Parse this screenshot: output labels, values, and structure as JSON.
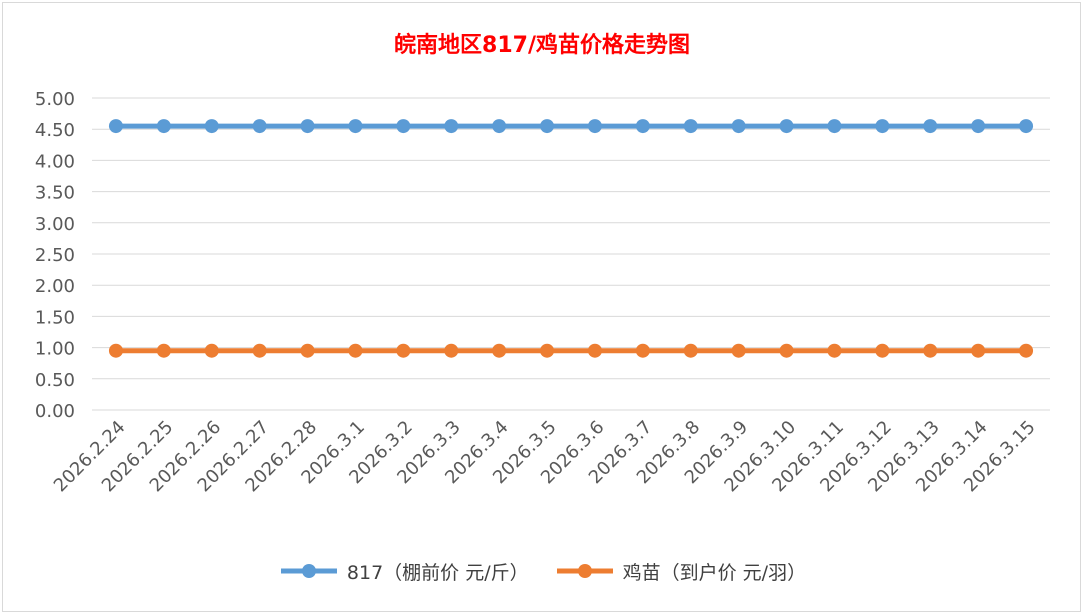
{
  "chart_data": {
    "type": "line",
    "title": "皖南地区817/鸡苗价格走势图",
    "xlabel": "",
    "ylabel": "",
    "ylim": [
      0,
      5
    ],
    "ytick_step": 0.5,
    "ytick_labels": [
      "0.00",
      "0.50",
      "1.00",
      "1.50",
      "2.00",
      "2.50",
      "3.00",
      "3.50",
      "4.00",
      "4.50",
      "5.00"
    ],
    "grid": "horizontal",
    "legend_position": "bottom",
    "categories": [
      "2026.2.24",
      "2026.2.25",
      "2026.2.26",
      "2026.2.27",
      "2026.2.28",
      "2026.3.1",
      "2026.3.2",
      "2026.3.3",
      "2026.3.4",
      "2026.3.5",
      "2026.3.6",
      "2026.3.7",
      "2026.3.8",
      "2026.3.9",
      "2026.3.10",
      "2026.3.11",
      "2026.3.12",
      "2026.3.13",
      "2026.3.14",
      "2026.3.15"
    ],
    "series": [
      {
        "name": "817（棚前价 元/斤）",
        "color": "#5b9bd5",
        "values": [
          4.55,
          4.55,
          4.55,
          4.55,
          4.55,
          4.55,
          4.55,
          4.55,
          4.55,
          4.55,
          4.55,
          4.55,
          4.55,
          4.55,
          4.55,
          4.55,
          4.55,
          4.55,
          4.55,
          4.55
        ]
      },
      {
        "name": "鸡苗（到户价 元/羽）",
        "color": "#ed7d31",
        "values": [
          0.95,
          0.95,
          0.95,
          0.95,
          0.95,
          0.95,
          0.95,
          0.95,
          0.95,
          0.95,
          0.95,
          0.95,
          0.95,
          0.95,
          0.95,
          0.95,
          0.95,
          0.95,
          0.95,
          0.95
        ]
      }
    ],
    "title_color": "#ff0000"
  }
}
